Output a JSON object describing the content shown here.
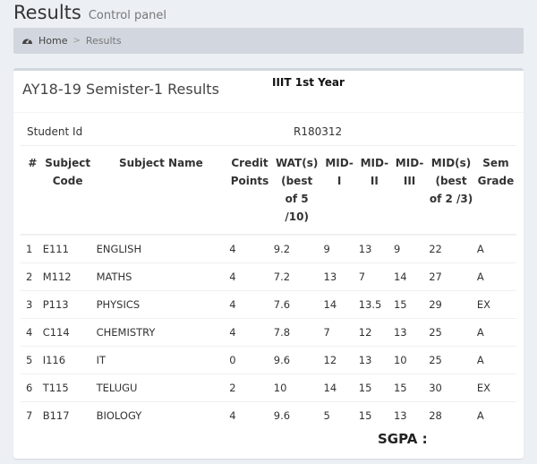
{
  "header": {
    "title": "Results",
    "subtitle": "Control panel"
  },
  "breadcrumb": {
    "icon": "dashboard-icon",
    "home": "Home",
    "separator": ">",
    "current": "Results"
  },
  "box": {
    "title": "AY18-19 Semister-1 Results",
    "badge": "IIIT 1st Year",
    "student_id_label": "Student Id",
    "student_id_value": "R180312",
    "sgpa_label": "SGPA :"
  },
  "table": {
    "columns": [
      {
        "key": "num",
        "label": "#"
      },
      {
        "key": "code",
        "label": "Subject Code"
      },
      {
        "key": "name",
        "label": "Subject Name"
      },
      {
        "key": "credit",
        "label": "Credit Points"
      },
      {
        "key": "wat",
        "label": "WAT(s) (best of 5 /10)"
      },
      {
        "key": "mid1",
        "label": "MID- I"
      },
      {
        "key": "mid2",
        "label": "MID- II"
      },
      {
        "key": "mid3",
        "label": "MID- III"
      },
      {
        "key": "mids",
        "label": "MID(s) (best of 2 /3)"
      },
      {
        "key": "grade",
        "label": "Sem Grade"
      }
    ],
    "rows": [
      {
        "num": "1",
        "code": "E111",
        "name": "ENGLISH",
        "credit": "4",
        "wat": "9.2",
        "mid1": "9",
        "mid2": "13",
        "mid3": "9",
        "mids": "22",
        "grade": "A"
      },
      {
        "num": "2",
        "code": "M112",
        "name": "MATHS",
        "credit": "4",
        "wat": "7.2",
        "mid1": "13",
        "mid2": "7",
        "mid3": "14",
        "mids": "27",
        "grade": "A"
      },
      {
        "num": "3",
        "code": "P113",
        "name": "PHYSICS",
        "credit": "4",
        "wat": "7.6",
        "mid1": "14",
        "mid2": "13.5",
        "mid3": "15",
        "mids": "29",
        "grade": "EX"
      },
      {
        "num": "4",
        "code": "C114",
        "name": "CHEMISTRY",
        "credit": "4",
        "wat": "7.8",
        "mid1": "7",
        "mid2": "12",
        "mid3": "13",
        "mids": "25",
        "grade": "A"
      },
      {
        "num": "5",
        "code": "I116",
        "name": "IT",
        "credit": "0",
        "wat": "9.6",
        "mid1": "12",
        "mid2": "13",
        "mid3": "10",
        "mids": "25",
        "grade": "A"
      },
      {
        "num": "6",
        "code": "T115",
        "name": "TELUGU",
        "credit": "2",
        "wat": "10",
        "mid1": "14",
        "mid2": "15",
        "mid3": "15",
        "mids": "30",
        "grade": "EX"
      },
      {
        "num": "7",
        "code": "B117",
        "name": "BIOLOGY",
        "credit": "4",
        "wat": "9.6",
        "mid1": "5",
        "mid2": "15",
        "mid3": "13",
        "mids": "28",
        "grade": "A"
      }
    ]
  }
}
